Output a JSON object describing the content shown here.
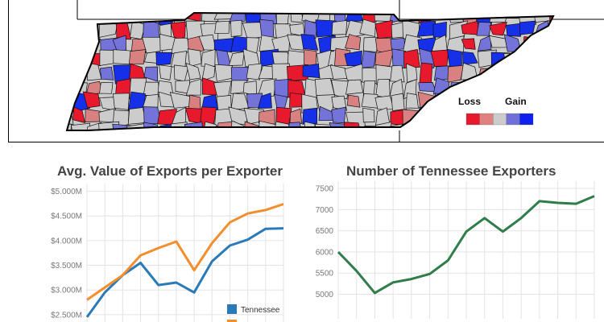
{
  "map": {
    "legend": {
      "loss_label": "Loss",
      "gain_label": "Gain",
      "colors": [
        "#e8192c",
        "#e08080",
        "#cccccc",
        "#7070d8",
        "#1020ee"
      ]
    },
    "colors": {
      "state_fill": "#cccccc",
      "county_line": "#111111",
      "loss_strong": "#e8192c",
      "loss_light": "#d98080",
      "gain_light": "#7373da",
      "gain_strong": "#1530e8"
    }
  },
  "chart_data": [
    {
      "type": "line",
      "title": "Avg. Value of Exports per Exporter",
      "y_tick_labels": [
        "$2.500M",
        "$3.000M",
        "$3.500M",
        "$4.000M",
        "$4.500M",
        "$5.000M"
      ],
      "y_ticks": [
        2.5,
        3.0,
        3.5,
        4.0,
        4.5,
        5.0
      ],
      "ylim": [
        2.4,
        5.05
      ],
      "grid": true,
      "legend_position": "bottom-right",
      "series": [
        {
          "name": "Tennessee",
          "color": "#2a7ab8",
          "values": [
            2.45,
            2.95,
            3.3,
            3.55,
            3.1,
            3.15,
            2.95,
            3.58,
            3.9,
            4.02,
            4.24,
            4.25
          ]
        },
        {
          "name": "",
          "color": "#f28e2b",
          "values": [
            2.8,
            3.05,
            3.3,
            3.7,
            3.85,
            3.98,
            3.4,
            3.95,
            4.37,
            4.55,
            4.62,
            4.74
          ]
        }
      ]
    },
    {
      "type": "line",
      "title": "Number of Tennessee Exporters",
      "y_tick_labels": [
        "5000",
        "5500",
        "6000",
        "6500",
        "7000",
        "7500"
      ],
      "y_ticks": [
        5000,
        5500,
        6000,
        6500,
        7000,
        7500
      ],
      "ylim": [
        4800,
        7560
      ],
      "grid": true,
      "series": [
        {
          "name": "",
          "color": "#2e7d4a",
          "values": [
            6000,
            5550,
            5030,
            5280,
            5360,
            5480,
            5800,
            6480,
            6800,
            6480,
            6800,
            7200,
            7160,
            7140,
            7320
          ]
        }
      ]
    }
  ]
}
